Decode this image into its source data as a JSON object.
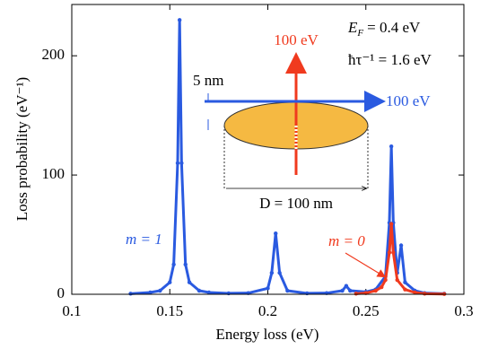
{
  "chart_data": {
    "type": "line",
    "x_label": "Energy loss (eV)",
    "y_label": "Loss probability (eV⁻¹)",
    "xlim": [
      0.1,
      0.3
    ],
    "xticks": [
      0.1,
      0.15,
      0.2,
      0.25,
      0.3
    ],
    "ylim": [
      0,
      243
    ],
    "yticks": [
      0,
      100,
      200
    ],
    "series": [
      {
        "name": "m = 1",
        "color": "#2a5ae0",
        "x": [
          0.13,
          0.14,
          0.145,
          0.15,
          0.152,
          0.154,
          0.155,
          0.156,
          0.158,
          0.16,
          0.165,
          0.17,
          0.18,
          0.19,
          0.2,
          0.202,
          0.204,
          0.206,
          0.21,
          0.22,
          0.23,
          0.238,
          0.24,
          0.242,
          0.25,
          0.255,
          0.26,
          0.262,
          0.263,
          0.264,
          0.266,
          0.268,
          0.27,
          0.275,
          0.28,
          0.29
        ],
        "values": [
          0.5,
          1.5,
          3,
          10,
          25,
          110,
          230,
          110,
          25,
          10,
          3,
          1.5,
          0.8,
          1,
          5,
          18,
          51,
          18,
          3,
          0.8,
          1,
          3,
          7,
          3,
          2,
          4,
          15,
          60,
          124,
          60,
          18,
          41,
          10,
          3,
          1,
          0.5
        ]
      },
      {
        "name": "m = 0",
        "color": "#f03a1e",
        "x": [
          0.245,
          0.25,
          0.255,
          0.258,
          0.26,
          0.262,
          0.263,
          0.264,
          0.266,
          0.27,
          0.275,
          0.28,
          0.29
        ],
        "values": [
          0.5,
          1,
          3,
          6,
          12,
          35,
          59,
          35,
          12,
          4,
          1.5,
          0.5,
          0.2
        ]
      }
    ],
    "annotations": {
      "fermi": {
        "symbol": "E",
        "subscript": "F",
        "text": "= 0.4 eV"
      },
      "damping": "ħτ⁻¹ = 1.6 eV",
      "electron_vertical": "100 eV",
      "electron_horizontal": "100 eV",
      "distance": "5 nm",
      "diameter": "D = 100 nm"
    }
  }
}
